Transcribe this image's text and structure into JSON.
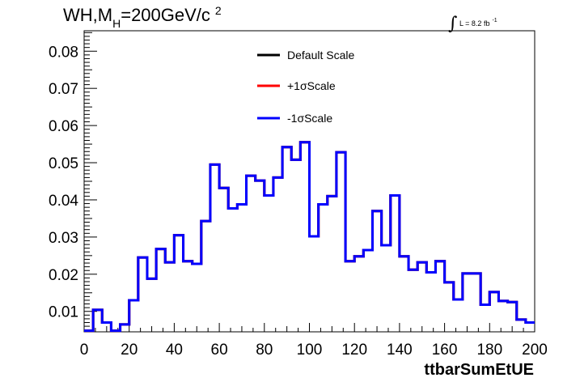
{
  "chart_data": {
    "type": "line",
    "step": true,
    "title": {
      "prefix": "WH,M",
      "subscript": "H",
      "value": "=200GeV/c",
      "superscript": "2"
    },
    "luminosity": {
      "symbol": "∫",
      "text": "L = 8.2 fb",
      "superscript": "-1"
    },
    "xlabel": "ttbarSumEtUE",
    "ylabel": "",
    "xlim": [
      0,
      200
    ],
    "ylim": [
      0.0045,
      0.0855
    ],
    "xticks": [
      0,
      20,
      40,
      60,
      80,
      100,
      120,
      140,
      160,
      180,
      200
    ],
    "yticks": [
      0.01,
      0.02,
      0.03,
      0.04,
      0.05,
      0.06,
      0.07,
      0.08
    ],
    "ytick_labels": [
      "0.01",
      "0.02",
      "0.03",
      "0.04",
      "0.05",
      "0.06",
      "0.07",
      "0.08"
    ],
    "bin_width": 4,
    "grid": false,
    "legend_position": "top-center",
    "series": [
      {
        "name": "Default Scale",
        "color": "#000000"
      },
      {
        "name": "+1σScale",
        "color": "#ff0000"
      },
      {
        "name": "-1σScale",
        "color": "#0000ff"
      }
    ],
    "bin_edges": [
      0,
      4,
      8,
      12,
      16,
      20,
      24,
      28,
      32,
      36,
      40,
      44,
      48,
      52,
      56,
      60,
      64,
      68,
      72,
      76,
      80,
      84,
      88,
      92,
      96,
      100,
      104,
      108,
      112,
      116,
      120,
      124,
      128,
      132,
      136,
      140,
      144,
      148,
      152,
      156,
      160,
      164,
      168,
      172,
      176,
      180,
      184,
      188,
      192,
      196,
      200
    ],
    "values": [
      0.0048,
      0.0104,
      0.007,
      0.0048,
      0.0065,
      0.013,
      0.0245,
      0.0188,
      0.0268,
      0.0232,
      0.0305,
      0.0235,
      0.0228,
      0.0343,
      0.0495,
      0.0432,
      0.0377,
      0.0388,
      0.0465,
      0.0452,
      0.0412,
      0.046,
      0.0542,
      0.0508,
      0.0555,
      0.0302,
      0.0388,
      0.041,
      0.0528,
      0.0235,
      0.0248,
      0.0265,
      0.037,
      0.0278,
      0.0412,
      0.0248,
      0.0212,
      0.0232,
      0.0205,
      0.0235,
      0.0178,
      0.0132,
      0.0202,
      0.0202,
      0.0118,
      0.0152,
      0.0128,
      0.0125,
      0.0078,
      0.007
    ]
  }
}
